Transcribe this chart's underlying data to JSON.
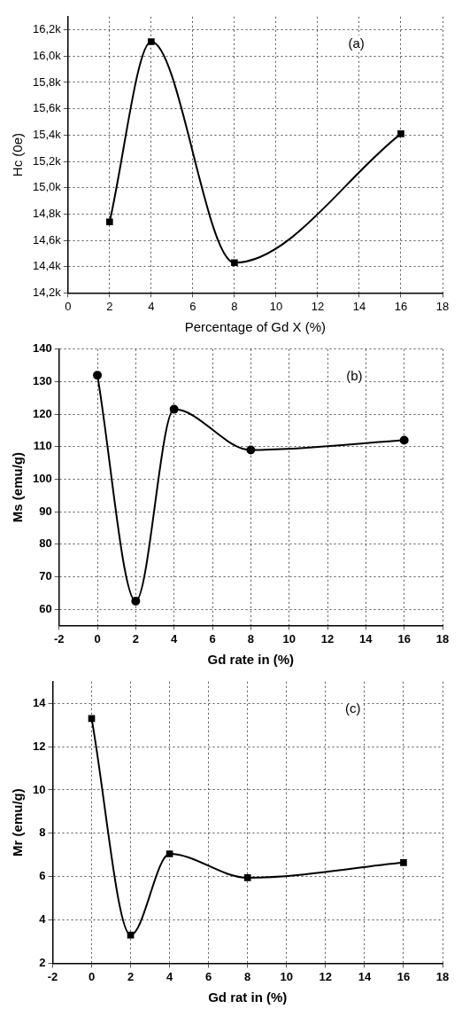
{
  "chart_data": [
    {
      "type": "line",
      "xlabel": "Percentage of Gd X (%)",
      "ylabel": "Hc (0e)",
      "annotations": [
        "(a)"
      ],
      "x": [
        2,
        4,
        8,
        16
      ],
      "values": [
        14740,
        16110,
        14430,
        15410
      ],
      "color": "#000000",
      "marker": "square",
      "grid": true,
      "xlim": [
        0,
        18
      ],
      "xticks": [
        0,
        2,
        4,
        6,
        8,
        10,
        12,
        14,
        16,
        18
      ],
      "ylim": [
        14200,
        16300
      ],
      "yticks": [
        {
          "value": 14200,
          "label": "14,2k"
        },
        {
          "value": 14400,
          "label": "14,4k"
        },
        {
          "value": 14600,
          "label": "14,6k"
        },
        {
          "value": 14800,
          "label": "14,8k"
        },
        {
          "value": 15000,
          "label": "15,0k"
        },
        {
          "value": 15200,
          "label": "15,2k"
        },
        {
          "value": 15400,
          "label": "15,4k"
        },
        {
          "value": 15600,
          "label": "15,6k"
        },
        {
          "value": 15800,
          "label": "15,8k"
        },
        {
          "value": 16000,
          "label": "16,0k"
        },
        {
          "value": 16200,
          "label": "16,2k"
        }
      ]
    },
    {
      "type": "line",
      "xlabel": "Gd rate in (%)",
      "ylabel": "Ms (emu/g)",
      "annotations": [
        "(b)"
      ],
      "x": [
        0,
        2,
        4,
        8,
        16
      ],
      "values": [
        132,
        62.5,
        121.5,
        109,
        112
      ],
      "color": "#000000",
      "marker": "circle",
      "grid": true,
      "xlim": [
        -2,
        18
      ],
      "xticks": [
        -2,
        0,
        2,
        4,
        6,
        8,
        10,
        12,
        14,
        16,
        18
      ],
      "ylim": [
        55,
        140
      ],
      "yticks": [
        60,
        70,
        80,
        90,
        100,
        110,
        120,
        130,
        140
      ]
    },
    {
      "type": "line",
      "xlabel": "Gd rat in (%)",
      "ylabel": "Mr (emu/g)",
      "annotations": [
        "(c)"
      ],
      "x": [
        0,
        2,
        4,
        8,
        16
      ],
      "values": [
        13.3,
        3.3,
        7.05,
        5.95,
        6.65
      ],
      "color": "#000000",
      "marker": "square",
      "grid": true,
      "xlim": [
        -2,
        18
      ],
      "xticks": [
        -2,
        0,
        2,
        4,
        6,
        8,
        10,
        12,
        14,
        16,
        18
      ],
      "ylim": [
        2,
        15
      ],
      "yticks": [
        2,
        4,
        6,
        8,
        10,
        12,
        14
      ]
    }
  ]
}
